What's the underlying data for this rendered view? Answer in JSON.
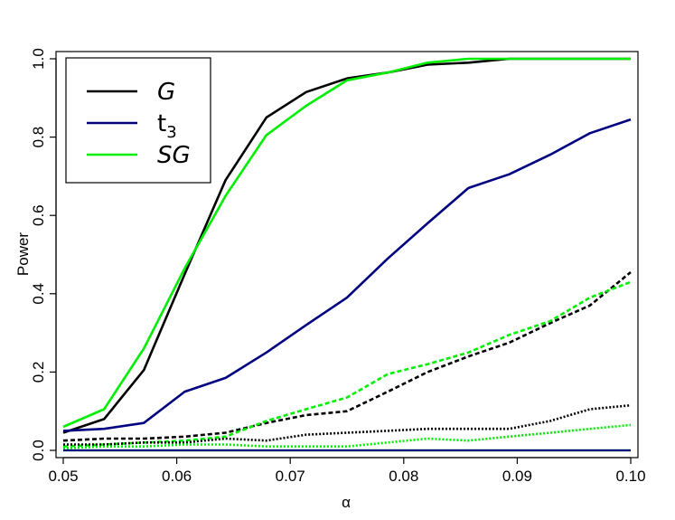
{
  "chart_data": {
    "type": "line",
    "xlabel": "α",
    "ylabel": "Power",
    "xlim": [
      0.05,
      0.1
    ],
    "ylim": [
      0.0,
      1.0
    ],
    "x_ticks": [
      "0.05",
      "0.06",
      "0.07",
      "0.08",
      "0.09",
      "0.10"
    ],
    "y_ticks": [
      "0.0",
      "0.2",
      "0.4",
      "0.6",
      "0.8",
      "1.0"
    ],
    "grid": false,
    "legend_position": "top-left",
    "legend": [
      {
        "label": "G",
        "italic": true,
        "sub": "",
        "color": "#000000"
      },
      {
        "label": "t",
        "italic": false,
        "sub": "3",
        "color": "#000080"
      },
      {
        "label": "SG",
        "italic": true,
        "sub": "",
        "color": "#00ee00"
      }
    ],
    "x": [
      0.05,
      0.0536,
      0.0571,
      0.0607,
      0.0643,
      0.0679,
      0.0714,
      0.075,
      0.0786,
      0.0821,
      0.0857,
      0.0893,
      0.0929,
      0.0964,
      0.1
    ],
    "series": [
      {
        "color": "#000000",
        "style": "solid",
        "width": 2.6,
        "values": [
          0.045,
          0.08,
          0.205,
          0.45,
          0.69,
          0.85,
          0.915,
          0.95,
          0.965,
          0.985,
          0.99,
          1.0,
          1.0,
          1.0,
          1.0
        ]
      },
      {
        "color": "#00ee00",
        "style": "solid",
        "width": 2.6,
        "values": [
          0.06,
          0.105,
          0.26,
          0.465,
          0.65,
          0.805,
          0.88,
          0.945,
          0.965,
          0.99,
          1.0,
          1.0,
          1.0,
          1.0,
          1.0
        ]
      },
      {
        "color": "#000080",
        "style": "solid",
        "width": 2.6,
        "values": [
          0.05,
          0.055,
          0.07,
          0.15,
          0.185,
          0.25,
          0.32,
          0.39,
          0.49,
          0.58,
          0.67,
          0.705,
          0.755,
          0.81,
          0.845
        ]
      },
      {
        "color": "#000000",
        "style": "dashed",
        "width": 2.6,
        "values": [
          0.025,
          0.03,
          0.03,
          0.035,
          0.045,
          0.07,
          0.09,
          0.1,
          0.15,
          0.2,
          0.24,
          0.275,
          0.325,
          0.37,
          0.455
        ]
      },
      {
        "color": "#00ee00",
        "style": "dashed",
        "width": 2.6,
        "values": [
          0.01,
          0.015,
          0.02,
          0.025,
          0.035,
          0.075,
          0.105,
          0.135,
          0.195,
          0.22,
          0.25,
          0.295,
          0.33,
          0.39,
          0.43
        ]
      },
      {
        "color": "#000000",
        "style": "dotted",
        "width": 2.6,
        "values": [
          0.015,
          0.015,
          0.02,
          0.02,
          0.03,
          0.025,
          0.04,
          0.045,
          0.05,
          0.055,
          0.055,
          0.055,
          0.075,
          0.105,
          0.115
        ]
      },
      {
        "color": "#00ee00",
        "style": "dotted",
        "width": 2.6,
        "values": [
          0.005,
          0.01,
          0.01,
          0.015,
          0.015,
          0.01,
          0.01,
          0.01,
          0.02,
          0.03,
          0.025,
          0.035,
          0.045,
          0.055,
          0.065
        ]
      },
      {
        "color": "#00ee00",
        "style": "solid",
        "width": 2.2,
        "values": [
          0.0,
          0.0,
          0.0,
          0.0,
          0.0,
          0.0,
          0.0,
          0.0,
          0.0,
          0.0,
          0.0,
          0.0,
          0.0,
          0.0,
          0.0
        ]
      },
      {
        "color": "#000080",
        "style": "solid",
        "width": 2.2,
        "values": [
          0.0,
          0.0,
          0.0,
          0.0,
          0.0,
          0.0,
          0.0,
          0.0,
          0.0,
          0.0,
          0.0,
          0.0,
          0.0,
          0.0,
          0.0
        ]
      },
      {
        "color": "#000080",
        "style": "dashed",
        "width": 2.0,
        "values": [
          0.0,
          0.0,
          0.0,
          0.0,
          0.0,
          0.0,
          0.0,
          0.0,
          0.0,
          0.0,
          0.0,
          0.0,
          0.0,
          0.0,
          0.0
        ]
      },
      {
        "color": "#000080",
        "style": "dotted",
        "width": 2.0,
        "values": [
          0.0,
          0.0,
          0.0,
          0.0,
          0.0,
          0.0,
          0.0,
          0.0,
          0.0,
          0.0,
          0.0,
          0.0,
          0.0,
          0.0,
          0.0
        ]
      }
    ]
  }
}
